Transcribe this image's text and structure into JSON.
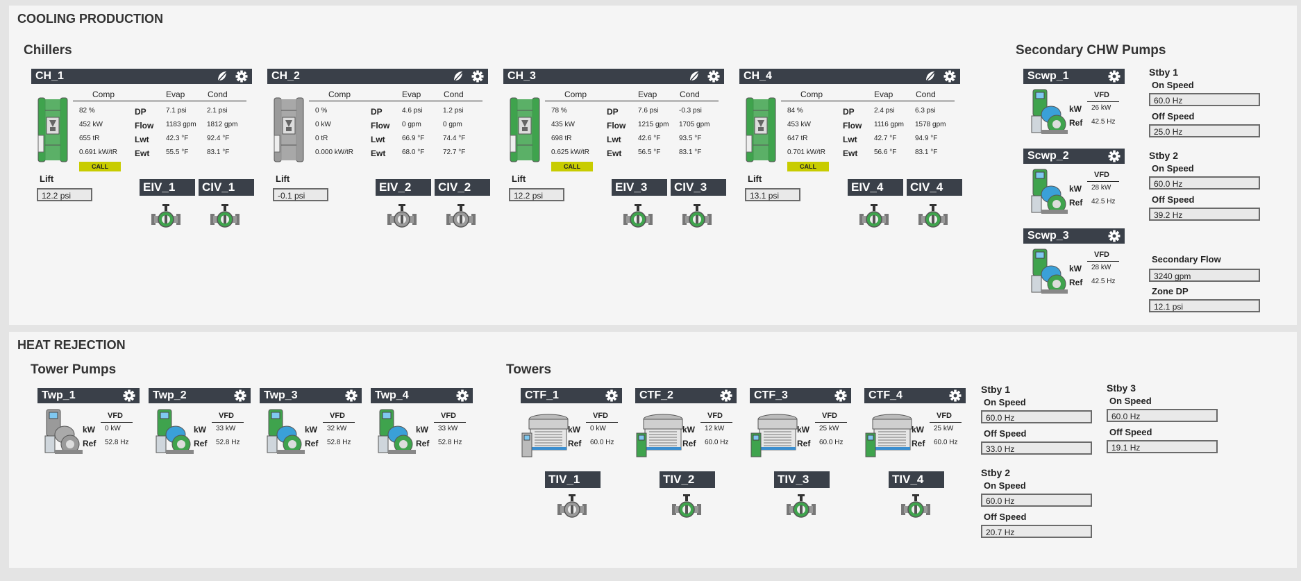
{
  "cooling": {
    "title": "COOLING PRODUCTION",
    "chillers_title": "Chillers",
    "col_comp": "Comp",
    "col_evap": "Evap",
    "col_cond": "Cond",
    "row_dp": "DP",
    "row_flow": "Flow",
    "row_lwt": "Lwt",
    "row_ewt": "Ewt",
    "lift_label": "Lift",
    "call_label": "CALL",
    "chillers": [
      {
        "name": "CH_1",
        "running": true,
        "comp": [
          "82 %",
          "452 kW",
          "655 tR",
          "0.691 kW/tR"
        ],
        "evap": [
          "7.1 psi",
          "1183 gpm",
          "42.3 °F",
          "55.5 °F"
        ],
        "cond": [
          "2.1 psi",
          "1812 gpm",
          "92.4 °F",
          "83.1 °F"
        ],
        "call": true,
        "lift": "12.2 psi",
        "eiv": "EIV_1",
        "civ": "CIV_1",
        "eiv_open": true,
        "civ_open": true
      },
      {
        "name": "CH_2",
        "running": false,
        "comp": [
          "0 %",
          "0 kW",
          "0 tR",
          "0.000 kW/tR"
        ],
        "evap": [
          "4.6 psi",
          "0 gpm",
          "66.9 °F",
          "68.0 °F"
        ],
        "cond": [
          "1.2 psi",
          "0 gpm",
          "74.4 °F",
          "72.7 °F"
        ],
        "call": false,
        "lift": "-0.1 psi",
        "eiv": "EIV_2",
        "civ": "CIV_2",
        "eiv_open": false,
        "civ_open": false
      },
      {
        "name": "CH_3",
        "running": true,
        "comp": [
          "78 %",
          "435 kW",
          "698 tR",
          "0.625 kW/tR"
        ],
        "evap": [
          "7.6 psi",
          "1215 gpm",
          "42.6 °F",
          "56.5 °F"
        ],
        "cond": [
          "-0.3 psi",
          "1705 gpm",
          "93.5 °F",
          "83.1 °F"
        ],
        "call": true,
        "lift": "12.2 psi",
        "eiv": "EIV_3",
        "civ": "CIV_3",
        "eiv_open": true,
        "civ_open": true
      },
      {
        "name": "CH_4",
        "running": true,
        "comp": [
          "84 %",
          "453 kW",
          "647 tR",
          "0.701 kW/tR"
        ],
        "evap": [
          "2.4 psi",
          "1116 gpm",
          "42.7 °F",
          "56.6 °F"
        ],
        "cond": [
          "6.3 psi",
          "1578 gpm",
          "94.9 °F",
          "83.1 °F"
        ],
        "call": true,
        "lift": "13.1 psi",
        "eiv": "EIV_4",
        "civ": "CIV_4",
        "eiv_open": true,
        "civ_open": true
      }
    ],
    "scwp_title": "Secondary CHW Pumps",
    "vfd_label": "VFD",
    "kw_label": "kW",
    "ref_label": "Ref",
    "scwp": [
      {
        "name": "Scwp_1",
        "kw": "26 kW",
        "ref": "42.5 Hz"
      },
      {
        "name": "Scwp_2",
        "kw": "28 kW",
        "ref": "42.5 Hz"
      },
      {
        "name": "Scwp_3",
        "kw": "28 kW",
        "ref": "42.5 Hz"
      }
    ],
    "stby1": {
      "title": "Stby 1",
      "on_label": "On Speed",
      "on": "60.0 Hz",
      "off_label": "Off Speed",
      "off": "25.0 Hz"
    },
    "stby2": {
      "title": "Stby 2",
      "on_label": "On Speed",
      "on": "60.0 Hz",
      "off_label": "Off Speed",
      "off": "39.2 Hz"
    },
    "secondary_flow_label": "Secondary Flow",
    "secondary_flow": "3240 gpm",
    "zone_dp_label": "Zone DP",
    "zone_dp": "12.1 psi"
  },
  "heat": {
    "title": "HEAT REJECTION",
    "tower_pumps_title": "Tower Pumps",
    "towers_title": "Towers",
    "vfd_label": "VFD",
    "kw_label": "kW",
    "ref_label": "Ref",
    "twp": [
      {
        "name": "Twp_1",
        "kw": "0 kW",
        "ref": "52.8 Hz",
        "running": false
      },
      {
        "name": "Twp_2",
        "kw": "33 kW",
        "ref": "52.8 Hz",
        "running": true
      },
      {
        "name": "Twp_3",
        "kw": "32 kW",
        "ref": "52.8 Hz",
        "running": true
      },
      {
        "name": "Twp_4",
        "kw": "33 kW",
        "ref": "52.8 Hz",
        "running": true
      }
    ],
    "ctf": [
      {
        "name": "CTF_1",
        "kw": "0 kW",
        "ref": "60.0 Hz",
        "running": false,
        "tiv": "TIV_1",
        "tiv_open": false
      },
      {
        "name": "CTF_2",
        "kw": "12 kW",
        "ref": "60.0 Hz",
        "running": true,
        "tiv": "TIV_2",
        "tiv_open": true
      },
      {
        "name": "CTF_3",
        "kw": "25 kW",
        "ref": "60.0 Hz",
        "running": true,
        "tiv": "TIV_3",
        "tiv_open": true
      },
      {
        "name": "CTF_4",
        "kw": "25 kW",
        "ref": "60.0 Hz",
        "running": true,
        "tiv": "TIV_4",
        "tiv_open": true
      }
    ],
    "stby1": {
      "title": "Stby 1",
      "on_label": "On Speed",
      "on": "60.0 Hz",
      "off_label": "Off Speed",
      "off": "33.0 Hz"
    },
    "stby2": {
      "title": "Stby 2",
      "on_label": "On Speed",
      "on": "60.0 Hz",
      "off_label": "Off Speed",
      "off": "20.7 Hz"
    },
    "stby3": {
      "title": "Stby 3",
      "on_label": "On Speed",
      "on": "60.0 Hz",
      "off_label": "Off Speed",
      "off": "19.1 Hz"
    }
  },
  "colors": {
    "header": "#3a4049",
    "running": "#3fa34d",
    "stopped": "#9a9a9a",
    "call": "#c8cc00",
    "motor_blue": "#3aa0d8"
  }
}
